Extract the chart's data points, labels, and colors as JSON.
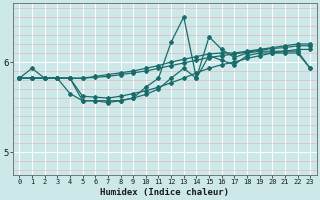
{
  "xlabel": "Humidex (Indice chaleur)",
  "background_color": "#cce8e8",
  "grid_color": "#ffffff",
  "line_color": "#1a6b6b",
  "xlim": [
    -0.5,
    23.5
  ],
  "ylim": [
    4.75,
    6.65
  ],
  "yticks": [
    5,
    6
  ],
  "xticks": [
    0,
    1,
    2,
    3,
    4,
    5,
    6,
    7,
    8,
    9,
    10,
    11,
    12,
    13,
    14,
    15,
    16,
    17,
    18,
    19,
    20,
    21,
    22,
    23
  ],
  "series": [
    [
      5.82,
      5.93,
      5.82,
      5.82,
      5.82,
      5.62,
      5.61,
      5.6,
      5.62,
      5.65,
      5.68,
      5.72,
      5.77,
      5.82,
      5.88,
      5.93,
      5.97,
      6.0,
      6.04,
      6.07,
      6.1,
      6.12,
      6.14,
      6.14
    ],
    [
      5.82,
      5.82,
      5.82,
      5.82,
      5.82,
      5.82,
      5.83,
      5.84,
      5.86,
      5.88,
      5.9,
      5.93,
      5.96,
      5.99,
      6.02,
      6.05,
      6.07,
      6.09,
      6.11,
      6.13,
      6.15,
      6.16,
      6.18,
      6.18
    ],
    [
      5.82,
      5.82,
      5.82,
      5.82,
      5.82,
      5.57,
      5.57,
      5.57,
      5.57,
      5.6,
      5.64,
      5.7,
      5.82,
      5.93,
      5.82,
      6.07,
      6.02,
      5.97,
      6.07,
      6.1,
      6.1,
      6.1,
      6.1,
      5.93
    ],
    [
      5.82,
      5.82,
      5.82,
      5.82,
      5.65,
      5.57,
      5.57,
      5.55,
      5.57,
      5.6,
      5.72,
      5.82,
      6.22,
      6.5,
      5.82,
      6.28,
      6.14,
      6.05,
      6.1,
      6.12,
      6.12,
      6.12,
      6.12,
      5.93
    ],
    [
      5.82,
      5.82,
      5.82,
      5.82,
      5.82,
      5.82,
      5.84,
      5.86,
      5.88,
      5.9,
      5.93,
      5.96,
      6.0,
      6.03,
      6.06,
      6.09,
      6.1,
      6.1,
      6.12,
      6.14,
      6.16,
      6.18,
      6.2,
      6.2
    ]
  ]
}
